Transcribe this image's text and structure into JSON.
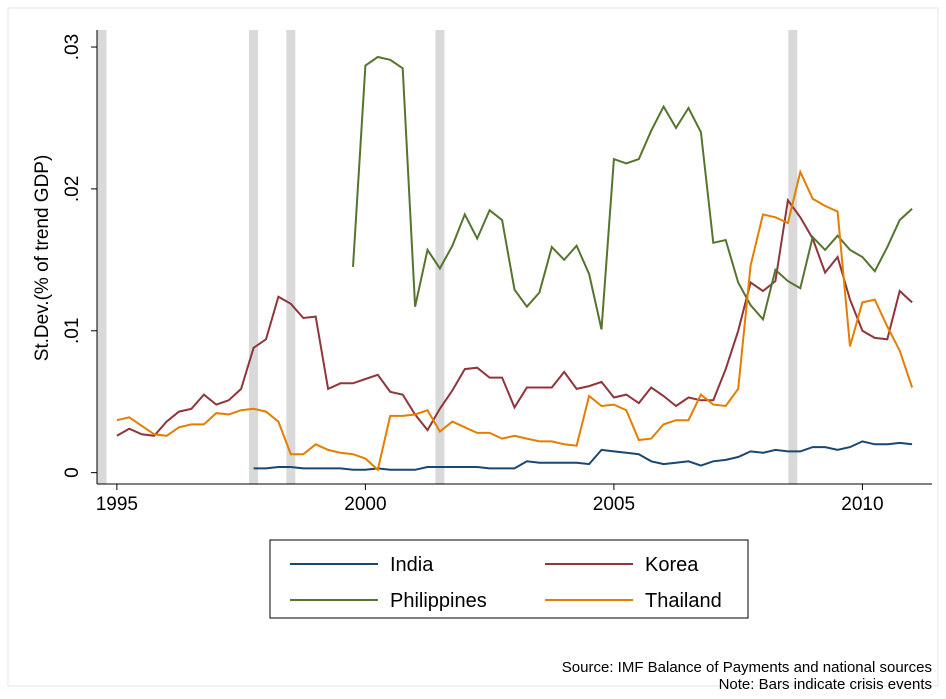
{
  "chart_data": {
    "type": "line",
    "ylabel": "St.Dev.(% of trend GDP)",
    "x": [
      1995,
      1995.25,
      1995.5,
      1995.75,
      1996,
      1996.25,
      1996.5,
      1996.75,
      1997,
      1997.25,
      1997.5,
      1997.75,
      1998,
      1998.25,
      1998.5,
      1998.75,
      1999,
      1999.25,
      1999.5,
      1999.75,
      2000,
      2000.25,
      2000.5,
      2000.75,
      2001,
      2001.25,
      2001.5,
      2001.75,
      2002,
      2002.25,
      2002.5,
      2002.75,
      2003,
      2003.25,
      2003.5,
      2003.75,
      2004,
      2004.25,
      2004.5,
      2004.75,
      2005,
      2005.25,
      2005.5,
      2005.75,
      2006,
      2006.25,
      2006.5,
      2006.75,
      2007,
      2007.25,
      2007.5,
      2007.75,
      2008,
      2008.25,
      2008.5,
      2008.75,
      2009,
      2009.25,
      2009.5,
      2009.75,
      2010,
      2010.25,
      2010.5,
      2010.75,
      2011
    ],
    "series": [
      {
        "name": "India",
        "color": "#1a476f",
        "values": [
          null,
          null,
          null,
          null,
          null,
          null,
          null,
          null,
          null,
          null,
          null,
          0.0003,
          0.0003,
          0.0004,
          0.0004,
          0.0003,
          0.0003,
          0.0003,
          0.0003,
          0.0002,
          0.0002,
          0.0003,
          0.0002,
          0.0002,
          0.0002,
          0.0004,
          0.0004,
          0.0004,
          0.0004,
          0.0004,
          0.0003,
          0.0003,
          0.0003,
          0.0008,
          0.0007,
          0.0007,
          0.0007,
          0.0007,
          0.0006,
          0.0016,
          0.0015,
          0.0014,
          0.0013,
          0.0008,
          0.0006,
          0.0007,
          0.0008,
          0.0005,
          0.0008,
          0.0009,
          0.0011,
          0.0015,
          0.0014,
          0.0016,
          0.0015,
          0.0015,
          0.0018,
          0.0018,
          0.0016,
          0.0018,
          0.0022,
          0.002,
          0.002,
          0.0021,
          0.002
        ]
      },
      {
        "name": "Korea",
        "color": "#90353b",
        "values": [
          0.0026,
          0.0031,
          0.0027,
          0.0026,
          0.0036,
          0.0043,
          0.0045,
          0.0055,
          0.0048,
          0.0051,
          0.0059,
          0.0088,
          0.0094,
          0.0124,
          0.0119,
          0.0109,
          0.011,
          0.0059,
          0.0063,
          0.0063,
          0.0066,
          0.0069,
          0.0057,
          0.0055,
          0.0041,
          0.003,
          0.0045,
          0.0058,
          0.0073,
          0.0074,
          0.0067,
          0.0067,
          0.0046,
          0.006,
          0.006,
          0.006,
          0.0071,
          0.0059,
          0.0061,
          0.0064,
          0.0053,
          0.0055,
          0.0049,
          0.006,
          0.0054,
          0.0047,
          0.0053,
          0.0051,
          0.0051,
          0.0073,
          0.01,
          0.0134,
          0.0128,
          0.0135,
          0.0192,
          0.018,
          0.0165,
          0.0141,
          0.0152,
          0.0122,
          0.01,
          0.0095,
          0.0094,
          0.0128,
          0.012
        ]
      },
      {
        "name": "Philippines",
        "color": "#55752f",
        "values": [
          null,
          null,
          null,
          null,
          null,
          null,
          null,
          null,
          null,
          null,
          null,
          null,
          null,
          null,
          null,
          null,
          null,
          null,
          null,
          0.0145,
          0.0287,
          0.0293,
          0.0291,
          0.0285,
          0.0117,
          0.0157,
          0.0144,
          0.016,
          0.0182,
          0.0165,
          0.0185,
          0.0178,
          0.0129,
          0.0117,
          0.0127,
          0.0159,
          0.015,
          0.016,
          0.014,
          0.0101,
          0.0221,
          0.0218,
          0.0221,
          0.0241,
          0.0258,
          0.0243,
          0.0257,
          0.024,
          0.0162,
          0.0164,
          0.0134,
          0.0118,
          0.0108,
          0.0143,
          0.0135,
          0.013,
          0.0166,
          0.0157,
          0.0167,
          0.0157,
          0.0152,
          0.0142,
          0.0159,
          0.0178,
          0.0186
        ]
      },
      {
        "name": "Thailand",
        "color": "#e37e00",
        "values": [
          0.0037,
          0.0039,
          0.0033,
          0.0027,
          0.0026,
          0.0032,
          0.0034,
          0.0034,
          0.0042,
          0.0041,
          0.0044,
          0.0045,
          0.0043,
          0.0036,
          0.0013,
          0.0013,
          0.002,
          0.0016,
          0.0014,
          0.0013,
          0.001,
          0.0002,
          0.004,
          0.004,
          0.0041,
          0.0044,
          0.0029,
          0.0036,
          0.0032,
          0.0028,
          0.0028,
          0.0024,
          0.0026,
          0.0024,
          0.0022,
          0.0022,
          0.002,
          0.0019,
          0.0054,
          0.0047,
          0.0048,
          0.0044,
          0.0023,
          0.0024,
          0.0034,
          0.0037,
          0.0037,
          0.0055,
          0.0048,
          0.0047,
          0.0059,
          0.0146,
          0.0182,
          0.018,
          0.0176,
          0.0212,
          0.0193,
          0.0188,
          0.0184,
          0.0089,
          0.012,
          0.0122,
          0.0103,
          0.0086,
          0.006
        ]
      }
    ],
    "crisis_bars": [
      1994.7,
      1997.75,
      1998.5,
      2001.5,
      2008.6
    ],
    "bar_color": "#d9d9d9",
    "xlim": [
      1994.6,
      2011.4
    ],
    "ylim": [
      -0.0008,
      0.0312
    ],
    "xticks": [
      1995,
      2000,
      2005,
      2010
    ],
    "yticks": [
      0,
      {
        "value": 0.01,
        "label": ".01"
      },
      {
        "value": 0.02,
        "label": ".02"
      },
      {
        "value": 0.03,
        "label": ".03"
      }
    ],
    "notes": [
      "Source: IMF Balance of Payments and national sources",
      "Note: Bars indicate crisis events"
    ]
  }
}
